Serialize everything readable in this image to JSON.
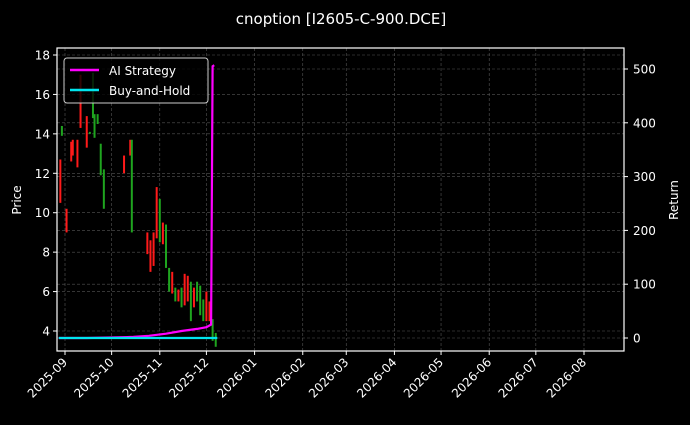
{
  "chart_data": {
    "type": "candlestick+line",
    "title": "cnoption [I2605-C-900.DCE]",
    "xlabel": "",
    "ylabel_left": "Price",
    "ylabel_right": "Return",
    "ylim_left": [
      3.0,
      18.2
    ],
    "ylim_right": [
      -25,
      525
    ],
    "yticks_left": [
      4,
      6,
      8,
      10,
      12,
      14,
      16,
      18
    ],
    "yticks_right": [
      0,
      100,
      200,
      300,
      400,
      500
    ],
    "xticks": [
      "2025-09",
      "2025-10",
      "2025-11",
      "2025-12",
      "2026-01",
      "2026-02",
      "2026-03",
      "2026-04",
      "2026-05",
      "2026-06",
      "2026-07",
      "2026-08"
    ],
    "grid": true,
    "legend": {
      "position": "upper left",
      "entries": [
        "AI Strategy",
        "Buy-and-Hold"
      ]
    },
    "colors": {
      "ai_strategy": "#ff00ff",
      "buy_and_hold": "#00e5ee",
      "up": "#1fa51f",
      "down": "#ff1a1a",
      "background": "#000000"
    },
    "series": [
      {
        "name": "AI Strategy",
        "axis": "right",
        "x": [
          "2025-08-28",
          "2025-09-15",
          "2025-10-01",
          "2025-10-15",
          "2025-10-25",
          "2025-11-05",
          "2025-11-15",
          "2025-11-25",
          "2025-12-01",
          "2025-12-04",
          "2025-12-05",
          "2025-12-06"
        ],
        "values": [
          0,
          0,
          1,
          2,
          4,
          8,
          13,
          17,
          20,
          25,
          505,
          507
        ]
      },
      {
        "name": "Buy-and-Hold",
        "axis": "right",
        "x": [
          "2025-08-28",
          "2025-12-08"
        ],
        "values": [
          0,
          0
        ]
      }
    ],
    "candles_approx": [
      {
        "date": "2025-08-29",
        "low": 10.5,
        "high": 12.7,
        "dir": "down"
      },
      {
        "date": "2025-08-30",
        "low": 13.9,
        "high": 14.4,
        "dir": "up"
      },
      {
        "date": "2025-09-02",
        "low": 9.0,
        "high": 10.2,
        "dir": "down"
      },
      {
        "date": "2025-09-05",
        "low": 12.6,
        "high": 13.6,
        "dir": "down"
      },
      {
        "date": "2025-09-06",
        "low": 12.9,
        "high": 13.7,
        "dir": "down"
      },
      {
        "date": "2025-09-09",
        "low": 12.3,
        "high": 13.7,
        "dir": "down"
      },
      {
        "date": "2025-09-11",
        "low": 14.3,
        "high": 17.0,
        "dir": "down"
      },
      {
        "date": "2025-09-15",
        "low": 13.3,
        "high": 14.9,
        "dir": "down"
      },
      {
        "date": "2025-09-17",
        "low": 14.0,
        "high": 14.1,
        "dir": "up"
      },
      {
        "date": "2025-09-19",
        "low": 14.8,
        "high": 17.1,
        "dir": "up"
      },
      {
        "date": "2025-09-20",
        "low": 13.8,
        "high": 15.0,
        "dir": "up"
      },
      {
        "date": "2025-09-22",
        "low": 14.5,
        "high": 15.0,
        "dir": "up"
      },
      {
        "date": "2025-09-24",
        "low": 11.9,
        "high": 13.5,
        "dir": "up"
      },
      {
        "date": "2025-09-26",
        "low": 10.2,
        "high": 12.2,
        "dir": "up"
      },
      {
        "date": "2025-10-09",
        "low": 12.0,
        "high": 12.9,
        "dir": "down"
      },
      {
        "date": "2025-10-13",
        "low": 12.9,
        "high": 13.7,
        "dir": "down"
      },
      {
        "date": "2025-10-14",
        "low": 9.0,
        "high": 13.7,
        "dir": "up"
      },
      {
        "date": "2025-10-24",
        "low": 7.9,
        "high": 9.0,
        "dir": "down"
      },
      {
        "date": "2025-10-26",
        "low": 7.0,
        "high": 8.6,
        "dir": "down"
      },
      {
        "date": "2025-10-28",
        "low": 7.3,
        "high": 9.0,
        "dir": "down"
      },
      {
        "date": "2025-10-30",
        "low": 8.7,
        "high": 11.3,
        "dir": "down"
      },
      {
        "date": "2025-11-01",
        "low": 8.5,
        "high": 10.7,
        "dir": "up"
      },
      {
        "date": "2025-11-03",
        "low": 8.4,
        "high": 9.5,
        "dir": "down"
      },
      {
        "date": "2025-11-05",
        "low": 7.2,
        "high": 9.4,
        "dir": "up"
      },
      {
        "date": "2025-11-07",
        "low": 6.0,
        "high": 7.2,
        "dir": "up"
      },
      {
        "date": "2025-11-09",
        "low": 5.9,
        "high": 7.0,
        "dir": "down"
      },
      {
        "date": "2025-11-11",
        "low": 5.5,
        "high": 6.2,
        "dir": "up"
      },
      {
        "date": "2025-11-13",
        "low": 5.5,
        "high": 6.1,
        "dir": "down"
      },
      {
        "date": "2025-11-15",
        "low": 5.2,
        "high": 6.2,
        "dir": "up"
      },
      {
        "date": "2025-11-17",
        "low": 5.3,
        "high": 6.9,
        "dir": "down"
      },
      {
        "date": "2025-11-19",
        "low": 5.5,
        "high": 6.8,
        "dir": "down"
      },
      {
        "date": "2025-11-21",
        "low": 4.5,
        "high": 6.5,
        "dir": "up"
      },
      {
        "date": "2025-11-23",
        "low": 5.2,
        "high": 6.2,
        "dir": "down"
      },
      {
        "date": "2025-11-25",
        "low": 5.5,
        "high": 6.5,
        "dir": "up"
      },
      {
        "date": "2025-11-27",
        "low": 4.8,
        "high": 6.3,
        "dir": "up"
      },
      {
        "date": "2025-11-29",
        "low": 4.5,
        "high": 5.6,
        "dir": "up"
      },
      {
        "date": "2025-12-01",
        "low": 4.5,
        "high": 6.0,
        "dir": "down"
      },
      {
        "date": "2025-12-03",
        "low": 4.5,
        "high": 5.5,
        "dir": "down"
      },
      {
        "date": "2025-12-05",
        "low": 3.5,
        "high": 4.6,
        "dir": "up"
      },
      {
        "date": "2025-12-07",
        "low": 3.2,
        "high": 3.9,
        "dir": "up"
      }
    ]
  }
}
